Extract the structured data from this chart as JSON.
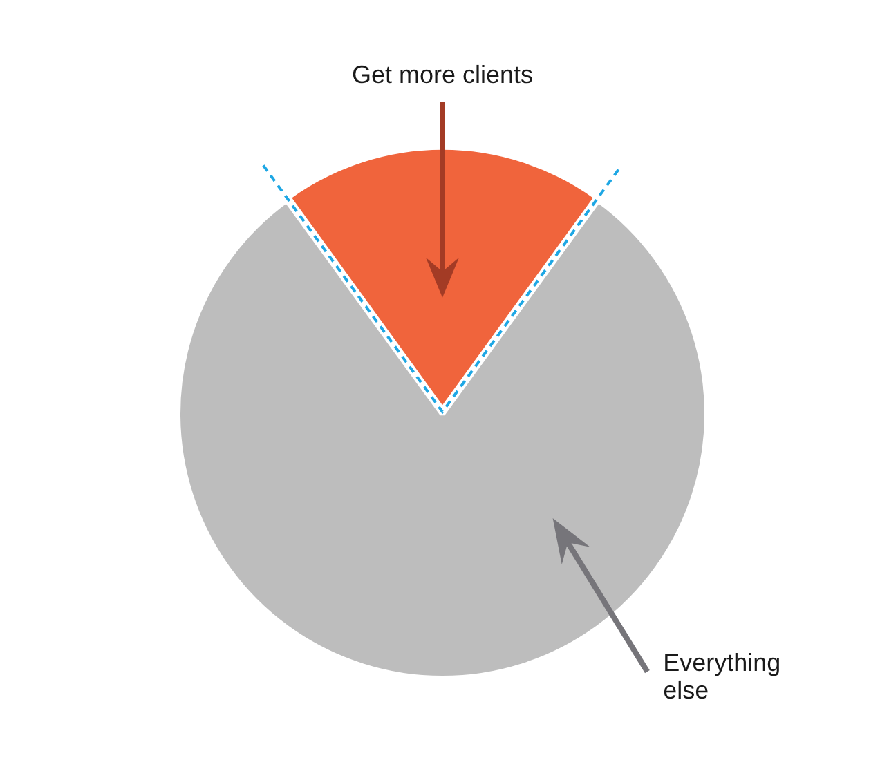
{
  "chart_data": {
    "type": "pie",
    "categories": [
      "Get more clients",
      "Everything else"
    ],
    "values": [
      20,
      80
    ],
    "colors": [
      "#f0643c",
      "#bdbdbd"
    ]
  }
}
